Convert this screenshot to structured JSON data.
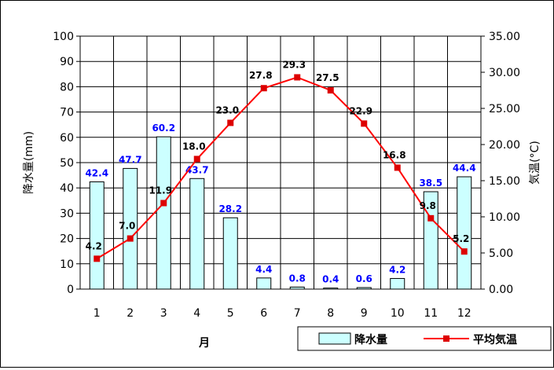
{
  "chart_data": {
    "type": "bar+line",
    "xlabel": "月",
    "ylabel_left": "降水量(mm)",
    "ylabel_right": "気温(°C)",
    "categories": [
      "1",
      "2",
      "3",
      "4",
      "5",
      "6",
      "7",
      "8",
      "9",
      "10",
      "11",
      "12"
    ],
    "ylim_left": [
      0,
      100
    ],
    "ylim_right": [
      0,
      35
    ],
    "y_ticks_left": [
      "0",
      "10",
      "20",
      "30",
      "40",
      "50",
      "60",
      "70",
      "80",
      "90",
      "100"
    ],
    "y_ticks_right": [
      "0.00",
      "5.00",
      "10.00",
      "15.00",
      "20.00",
      "25.00",
      "30.00",
      "35.00"
    ],
    "grid": true,
    "legend_position": "bottom-right",
    "series": [
      {
        "name": "降水量",
        "type": "bar",
        "axis": "left",
        "values": [
          42.4,
          47.7,
          60.2,
          43.7,
          28.2,
          4.4,
          0.8,
          0.4,
          0.6,
          4.2,
          38.5,
          44.4
        ],
        "labels": [
          "42.4",
          "47.7",
          "60.2",
          "43.7",
          "28.2",
          "4.4",
          "0.8",
          "0.4",
          "0.6",
          "4.2",
          "38.5",
          "44.4"
        ],
        "fill_color": "#ccffff",
        "label_color": "#0000ff"
      },
      {
        "name": "平均気温",
        "type": "line",
        "axis": "right",
        "values": [
          4.2,
          7.0,
          11.9,
          18.0,
          23.0,
          27.8,
          29.3,
          27.5,
          22.9,
          16.8,
          9.8,
          5.2
        ],
        "labels": [
          "4.2",
          "7.0",
          "11.9",
          "18.0",
          "23.0",
          "27.8",
          "29.3",
          "27.5",
          "22.9",
          "16.8",
          "9.8",
          "5.2"
        ],
        "line_color": "#ff0000",
        "marker_color": "#dd0000",
        "label_color": "#000000"
      }
    ]
  }
}
